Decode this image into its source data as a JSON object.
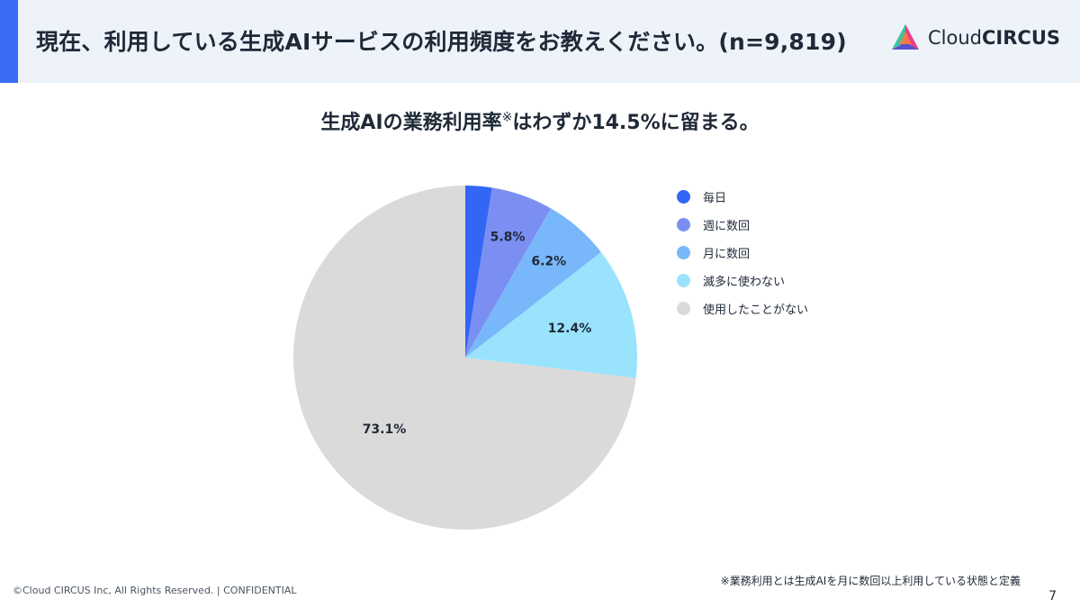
{
  "header": {
    "title": "現在、利用している生成AIサービスの利用頻度をお教えください。(n=9,819)",
    "logo_text_light": "Cloud",
    "logo_text_bold": "CIRCUS"
  },
  "chart_data": {
    "type": "pie",
    "title": "生成AIの業務利用率",
    "title_mark": "※",
    "title_suffix": "はわずか14.5%に留まる。",
    "start_angle_deg": 0,
    "direction": "clockwise",
    "slices": [
      {
        "name": "毎日",
        "value": 2.5,
        "label": "",
        "color": "#3366f5"
      },
      {
        "name": "週に数回",
        "value": 5.8,
        "label": "5.8%",
        "color": "#7b8ff3"
      },
      {
        "name": "月に数回",
        "value": 6.2,
        "label": "6.2%",
        "color": "#79b7fb"
      },
      {
        "name": "滅多に使わない",
        "value": 12.4,
        "label": "12.4%",
        "color": "#9ae3fd"
      },
      {
        "name": "使用したことがない",
        "value": 73.1,
        "label": "73.1%",
        "color": "#dadada"
      }
    ],
    "legend_position": "right",
    "footnote": "※業務利用とは生成AIを月に数回以上利用している状態と定義"
  },
  "footer": {
    "copyright": "©Cloud CIRCUS Inc, All Rights Reserved. | CONFIDENTIAL",
    "page_number": "7"
  },
  "colors": {
    "accent": "#3b6cf6",
    "header_bg": "#eef3fa"
  }
}
